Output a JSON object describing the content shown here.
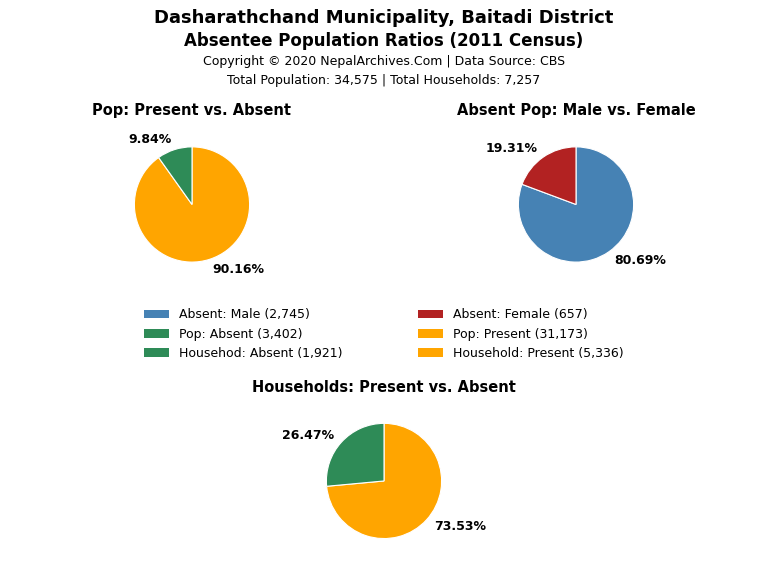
{
  "title": "Dasharathchand Municipality, Baitadi District",
  "subtitle": "Absentee Population Ratios (2011 Census)",
  "annotations": [
    "Copyright © 2020 NepalArchives.Com | Data Source: CBS",
    "Total Population: 34,575 | Total Households: 7,257"
  ],
  "legend": "center",
  "series": [
    {
      "name": "Absent: Male (2,745)",
      "color": "#4682B4"
    },
    {
      "name": "Absent: Female (657)",
      "color": "#B22222"
    },
    {
      "name": "Pop: Absent (3,402)",
      "color": "#2E8B57"
    },
    {
      "name": "Pop: Present (31,173)",
      "color": "#FFA500"
    },
    {
      "name": "Househod: Absent (1,921)",
      "color": "#2E8B57"
    },
    {
      "name": "Household: Present (5,336)",
      "color": "#FFA500"
    }
  ],
  "chart_data": [
    {
      "type": "pie",
      "title": "Pop: Present vs. Absent",
      "values": [
        90.16,
        9.84
      ],
      "value_labels": [
        "90.16%",
        "9.84%"
      ],
      "colors": [
        "#FFA500",
        "#2E8B57"
      ],
      "data_labels": true
    },
    {
      "type": "pie",
      "title": "Absent Pop: Male vs. Female",
      "values": [
        80.69,
        19.31
      ],
      "value_labels": [
        "80.69%",
        "19.31%"
      ],
      "colors": [
        "#4682B4",
        "#B22222"
      ],
      "data_labels": true
    },
    {
      "type": "pie",
      "title": "Households: Present vs. Absent",
      "values": [
        73.53,
        26.47
      ],
      "value_labels": [
        "73.53%",
        "26.47%"
      ],
      "colors": [
        "#FFA500",
        "#2E8B57"
      ],
      "data_labels": true
    }
  ]
}
